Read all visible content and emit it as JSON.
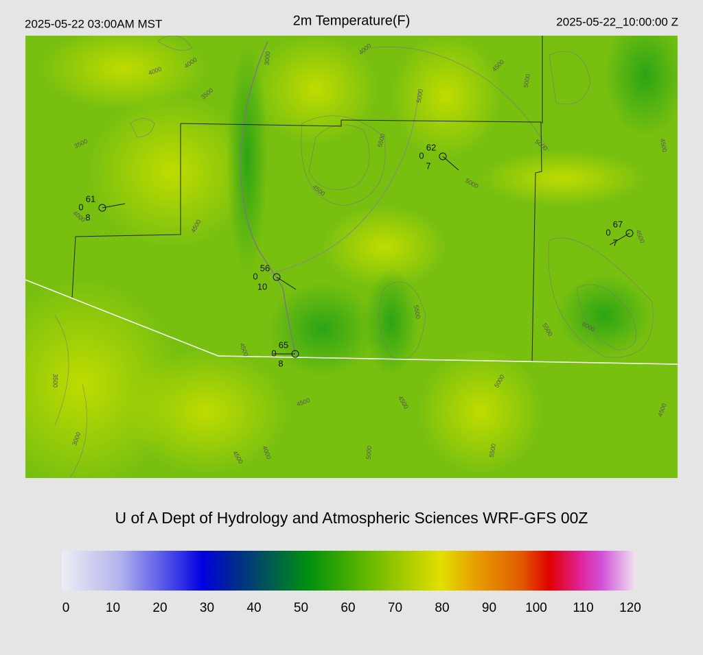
{
  "header": {
    "local_time": "2025-05-22 03:00AM MST",
    "title": "2m Temperature(F)",
    "utc_time": "2025-05-22_10:00:00 Z"
  },
  "stations": [
    {
      "temperature": 61,
      "left": 0,
      "bottom": 8
    },
    {
      "temperature": 62,
      "left": 0,
      "bottom": 7
    },
    {
      "temperature": 67,
      "left": 0,
      "bottom": 7
    },
    {
      "temperature": 56,
      "left": 0,
      "bottom": 10
    },
    {
      "temperature": 65,
      "left": 0,
      "bottom": 8
    }
  ],
  "contours": [
    4000,
    4000,
    3000,
    4000,
    4500,
    5000,
    3500,
    5000,
    3500,
    5500,
    5000,
    4500,
    5000,
    4000,
    4500,
    4500,
    4500,
    5500,
    5500,
    6000,
    4500,
    3500,
    5000,
    4500,
    4500,
    4500,
    3000,
    4000,
    4500,
    5000,
    5500
  ],
  "footer": {
    "title": "U of A Dept of Hydrology and Atmospheric Sciences WRF-GFS 00Z"
  },
  "colorbar": {
    "ticks": [
      0,
      10,
      20,
      30,
      40,
      50,
      60,
      70,
      80,
      90,
      100,
      110,
      120
    ]
  }
}
